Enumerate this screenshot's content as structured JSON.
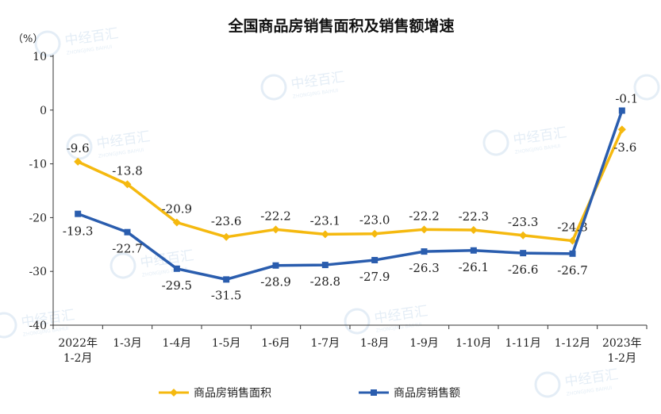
{
  "chart_data": {
    "type": "line",
    "title": "全国商品房销售面积及销售额增速",
    "ylabel": "（%）",
    "ylim": [
      -40,
      10
    ],
    "yticks": [
      10,
      0,
      -10,
      -20,
      -30,
      -40
    ],
    "categories": [
      "2022年\n1-2月",
      "1-3月",
      "1-4月",
      "1-5月",
      "1-6月",
      "1-7月",
      "1-8月",
      "1-9月",
      "1-10月",
      "1-11月",
      "1-12月",
      "2023年\n1-2月"
    ],
    "series": [
      {
        "name": "商品房销售面积",
        "color": "#F5B90F",
        "marker": "diamond",
        "values": [
          -9.6,
          -13.8,
          -20.9,
          -23.6,
          -22.2,
          -23.1,
          -23.0,
          -22.2,
          -22.3,
          -23.3,
          -24.3,
          -3.6
        ],
        "labels": [
          "-9.6",
          "-13.8",
          "-20.9",
          "-23.6",
          "-22.2",
          "-23.1",
          "-23.0",
          "-22.2",
          "-22.3",
          "-23.3",
          "-24.3",
          "-3.6"
        ]
      },
      {
        "name": "商品房销售额",
        "color": "#2A5DAE",
        "marker": "square",
        "values": [
          -19.3,
          -22.7,
          -29.5,
          -31.5,
          -28.9,
          -28.8,
          -27.9,
          -26.3,
          -26.1,
          -26.6,
          -26.7,
          -0.1
        ],
        "labels": [
          "-19.3",
          "-22.7",
          "-29.5",
          "-31.5",
          "-28.9",
          "-28.8",
          "-27.9",
          "-26.3",
          "-26.1",
          "-26.6",
          "-26.7",
          "-0.1"
        ]
      }
    ],
    "grid": false,
    "legend_position": "bottom"
  },
  "watermark": {
    "text": "中经百汇",
    "subtext": "ZHONGJING BAIHUI",
    "color": "#cfe0ef"
  }
}
